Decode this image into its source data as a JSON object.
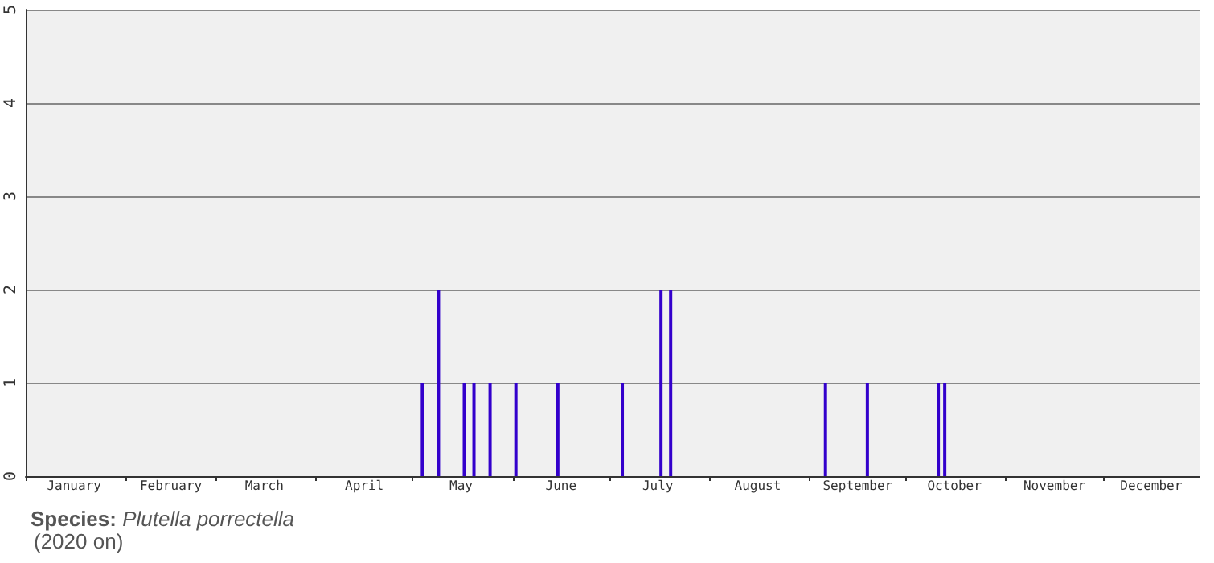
{
  "chart_data": {
    "type": "bar",
    "title": "Species: Plutella porrectella",
    "subtitle": "(2020 on)",
    "x": [
      "--05-04",
      "--05-09",
      "--05-17",
      "--05-20",
      "--05-25",
      "--06-02",
      "--06-15",
      "--07-05",
      "--07-17",
      "--07-20",
      "--09-06",
      "--09-19",
      "--10-11",
      "--10-13"
    ],
    "series": [
      {
        "color": "#3300cc",
        "values": [
          1,
          2,
          1,
          1,
          1,
          1,
          1,
          1,
          2,
          2,
          1,
          1,
          1,
          1
        ]
      }
    ],
    "xlim": [
      "--01-01",
      "--12-31"
    ],
    "xticks": [
      {
        "value": "--01-01",
        "label": null
      },
      {
        "value": "--01-16",
        "label": "January"
      },
      {
        "value": "--02-01",
        "label": null
      },
      {
        "value": "--02-15",
        "label": "February"
      },
      {
        "value": "--03-01",
        "label": null
      },
      {
        "value": "--03-16",
        "label": "March"
      },
      {
        "value": "--04-01",
        "label": null
      },
      {
        "value": "--04-16",
        "label": "April"
      },
      {
        "value": "--05-01",
        "label": null
      },
      {
        "value": "--05-16",
        "label": "May"
      },
      {
        "value": "--06-01",
        "label": null
      },
      {
        "value": "--06-16",
        "label": "June"
      },
      {
        "value": "--07-01",
        "label": null
      },
      {
        "value": "--07-16",
        "label": "July"
      },
      {
        "value": "--08-01",
        "label": null
      },
      {
        "value": "--08-16",
        "label": "August"
      },
      {
        "value": "--09-01",
        "label": null
      },
      {
        "value": "--09-16",
        "label": "September"
      },
      {
        "value": "--10-01",
        "label": null
      },
      {
        "value": "--10-16",
        "label": "October"
      },
      {
        "value": "--11-01",
        "label": null
      },
      {
        "value": "--11-16",
        "label": "November"
      },
      {
        "value": "--12-01",
        "label": null
      },
      {
        "value": "--12-16",
        "label": "December"
      }
    ],
    "ylim": [
      0,
      5
    ],
    "yticks": [
      0,
      1,
      2,
      3,
      4,
      5
    ],
    "grid": "y"
  }
}
